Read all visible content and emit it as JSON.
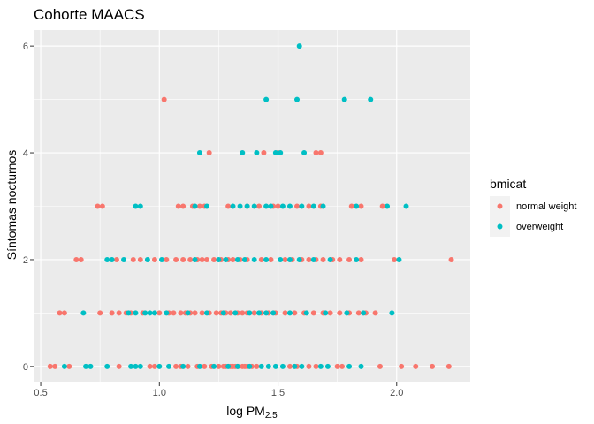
{
  "chart_data": {
    "type": "scatter",
    "title": "Cohorte MAACS",
    "xlabel": {
      "main": "log PM",
      "sub": "2.5"
    },
    "ylabel": "Síntomas nocturnos",
    "xlim": [
      0.47,
      2.31
    ],
    "ylim": [
      -0.3,
      6.3
    ],
    "x_ticks": [
      "0.5",
      "1.0",
      "1.5",
      "2.0"
    ],
    "y_ticks": [
      "0",
      "2",
      "4",
      "6"
    ],
    "grid": true,
    "legend": {
      "title": "bmicat",
      "position": "right"
    },
    "series": [
      {
        "name": "normal weight",
        "color": "#F8766D",
        "points": [
          [
            0.54,
            0
          ],
          [
            0.56,
            0
          ],
          [
            0.62,
            0
          ],
          [
            0.83,
            0
          ],
          [
            0.96,
            0
          ],
          [
            0.98,
            0
          ],
          [
            1.07,
            0
          ],
          [
            1.09,
            0
          ],
          [
            1.12,
            0
          ],
          [
            1.16,
            0
          ],
          [
            1.19,
            0
          ],
          [
            1.22,
            0
          ],
          [
            1.25,
            0
          ],
          [
            1.27,
            0
          ],
          [
            1.28,
            0
          ],
          [
            1.3,
            0
          ],
          [
            1.31,
            0
          ],
          [
            1.32,
            0
          ],
          [
            1.33,
            0
          ],
          [
            1.35,
            0
          ],
          [
            1.36,
            0
          ],
          [
            1.37,
            0
          ],
          [
            1.39,
            0
          ],
          [
            1.41,
            0
          ],
          [
            1.55,
            0
          ],
          [
            1.58,
            0
          ],
          [
            1.63,
            0
          ],
          [
            1.66,
            0
          ],
          [
            1.75,
            0
          ],
          [
            1.77,
            0
          ],
          [
            1.93,
            0
          ],
          [
            2.02,
            0
          ],
          [
            2.08,
            0
          ],
          [
            2.15,
            0
          ],
          [
            2.22,
            0
          ],
          [
            0.58,
            1
          ],
          [
            0.6,
            1
          ],
          [
            0.75,
            1
          ],
          [
            0.8,
            1
          ],
          [
            0.83,
            1
          ],
          [
            0.86,
            1
          ],
          [
            0.88,
            1
          ],
          [
            0.93,
            1
          ],
          [
            1.0,
            1
          ],
          [
            1.04,
            1
          ],
          [
            1.06,
            1
          ],
          [
            1.09,
            1
          ],
          [
            1.11,
            1
          ],
          [
            1.13,
            1
          ],
          [
            1.15,
            1
          ],
          [
            1.18,
            1
          ],
          [
            1.21,
            1
          ],
          [
            1.24,
            1
          ],
          [
            1.26,
            1
          ],
          [
            1.28,
            1
          ],
          [
            1.3,
            1
          ],
          [
            1.33,
            1
          ],
          [
            1.35,
            1
          ],
          [
            1.37,
            1
          ],
          [
            1.4,
            1
          ],
          [
            1.43,
            1
          ],
          [
            1.46,
            1
          ],
          [
            1.49,
            1
          ],
          [
            1.53,
            1
          ],
          [
            1.57,
            1
          ],
          [
            1.61,
            1
          ],
          [
            1.65,
            1
          ],
          [
            1.69,
            1
          ],
          [
            1.72,
            1
          ],
          [
            1.76,
            1
          ],
          [
            1.8,
            1
          ],
          [
            1.84,
            1
          ],
          [
            1.87,
            1
          ],
          [
            1.91,
            1
          ],
          [
            0.65,
            2
          ],
          [
            0.67,
            2
          ],
          [
            0.82,
            2
          ],
          [
            0.89,
            2
          ],
          [
            0.92,
            2
          ],
          [
            0.98,
            2
          ],
          [
            1.03,
            2
          ],
          [
            1.07,
            2
          ],
          [
            1.1,
            2
          ],
          [
            1.13,
            2
          ],
          [
            1.16,
            2
          ],
          [
            1.18,
            2
          ],
          [
            1.2,
            2
          ],
          [
            1.23,
            2
          ],
          [
            1.26,
            2
          ],
          [
            1.29,
            2
          ],
          [
            1.31,
            2
          ],
          [
            1.34,
            2
          ],
          [
            1.37,
            2
          ],
          [
            1.43,
            2
          ],
          [
            1.47,
            2
          ],
          [
            1.53,
            2
          ],
          [
            1.56,
            2
          ],
          [
            1.6,
            2
          ],
          [
            1.63,
            2
          ],
          [
            1.66,
            2
          ],
          [
            1.69,
            2
          ],
          [
            1.73,
            2
          ],
          [
            1.76,
            2
          ],
          [
            1.8,
            2
          ],
          [
            1.85,
            2
          ],
          [
            1.99,
            2
          ],
          [
            2.23,
            2
          ],
          [
            0.74,
            3
          ],
          [
            0.76,
            3
          ],
          [
            1.08,
            3
          ],
          [
            1.1,
            3
          ],
          [
            1.14,
            3
          ],
          [
            1.17,
            3
          ],
          [
            1.19,
            3
          ],
          [
            1.29,
            3
          ],
          [
            1.37,
            3
          ],
          [
            1.42,
            3
          ],
          [
            1.48,
            3
          ],
          [
            1.5,
            3
          ],
          [
            1.58,
            3
          ],
          [
            1.63,
            3
          ],
          [
            1.68,
            3
          ],
          [
            1.81,
            3
          ],
          [
            1.85,
            3
          ],
          [
            1.94,
            3
          ],
          [
            1.21,
            4
          ],
          [
            1.44,
            4
          ],
          [
            1.5,
            4
          ],
          [
            1.66,
            4
          ],
          [
            1.68,
            4
          ],
          [
            1.02,
            5
          ]
        ]
      },
      {
        "name": "overweight",
        "color": "#00BFC4",
        "points": [
          [
            0.6,
            0
          ],
          [
            0.69,
            0
          ],
          [
            0.71,
            0
          ],
          [
            0.78,
            0
          ],
          [
            0.88,
            0
          ],
          [
            0.9,
            0
          ],
          [
            0.92,
            0
          ],
          [
            1.0,
            0
          ],
          [
            1.04,
            0
          ],
          [
            1.1,
            0
          ],
          [
            1.17,
            0
          ],
          [
            1.23,
            0
          ],
          [
            1.29,
            0
          ],
          [
            1.33,
            0
          ],
          [
            1.38,
            0
          ],
          [
            1.43,
            0
          ],
          [
            1.46,
            0
          ],
          [
            1.49,
            0
          ],
          [
            1.52,
            0
          ],
          [
            1.57,
            0
          ],
          [
            1.6,
            0
          ],
          [
            1.68,
            0
          ],
          [
            1.71,
            0
          ],
          [
            1.8,
            0
          ],
          [
            1.85,
            0
          ],
          [
            0.68,
            1
          ],
          [
            0.87,
            1
          ],
          [
            0.9,
            1
          ],
          [
            0.94,
            1
          ],
          [
            0.96,
            1
          ],
          [
            0.98,
            1
          ],
          [
            1.03,
            1
          ],
          [
            1.12,
            1
          ],
          [
            1.2,
            1
          ],
          [
            1.27,
            1
          ],
          [
            1.32,
            1
          ],
          [
            1.38,
            1
          ],
          [
            1.42,
            1
          ],
          [
            1.45,
            1
          ],
          [
            1.48,
            1
          ],
          [
            1.55,
            1
          ],
          [
            1.62,
            1
          ],
          [
            1.7,
            1
          ],
          [
            1.79,
            1
          ],
          [
            1.86,
            1
          ],
          [
            1.98,
            1
          ],
          [
            0.78,
            2
          ],
          [
            0.8,
            2
          ],
          [
            0.85,
            2
          ],
          [
            0.95,
            2
          ],
          [
            1.01,
            2
          ],
          [
            1.15,
            2
          ],
          [
            1.25,
            2
          ],
          [
            1.28,
            2
          ],
          [
            1.33,
            2
          ],
          [
            1.36,
            2
          ],
          [
            1.4,
            2
          ],
          [
            1.45,
            2
          ],
          [
            1.51,
            2
          ],
          [
            1.55,
            2
          ],
          [
            1.59,
            2
          ],
          [
            1.65,
            2
          ],
          [
            1.72,
            2
          ],
          [
            1.83,
            2
          ],
          [
            2.01,
            2
          ],
          [
            0.9,
            3
          ],
          [
            0.92,
            3
          ],
          [
            1.15,
            3
          ],
          [
            1.2,
            3
          ],
          [
            1.31,
            3
          ],
          [
            1.34,
            3
          ],
          [
            1.37,
            3
          ],
          [
            1.4,
            3
          ],
          [
            1.45,
            3
          ],
          [
            1.47,
            3
          ],
          [
            1.52,
            3
          ],
          [
            1.55,
            3
          ],
          [
            1.6,
            3
          ],
          [
            1.65,
            3
          ],
          [
            1.69,
            3
          ],
          [
            1.83,
            3
          ],
          [
            1.96,
            3
          ],
          [
            2.04,
            3
          ],
          [
            1.17,
            4
          ],
          [
            1.35,
            4
          ],
          [
            1.41,
            4
          ],
          [
            1.49,
            4
          ],
          [
            1.51,
            4
          ],
          [
            1.61,
            4
          ],
          [
            1.45,
            5
          ],
          [
            1.58,
            5
          ],
          [
            1.78,
            5
          ],
          [
            1.89,
            5
          ],
          [
            1.59,
            6
          ]
        ]
      }
    ]
  }
}
